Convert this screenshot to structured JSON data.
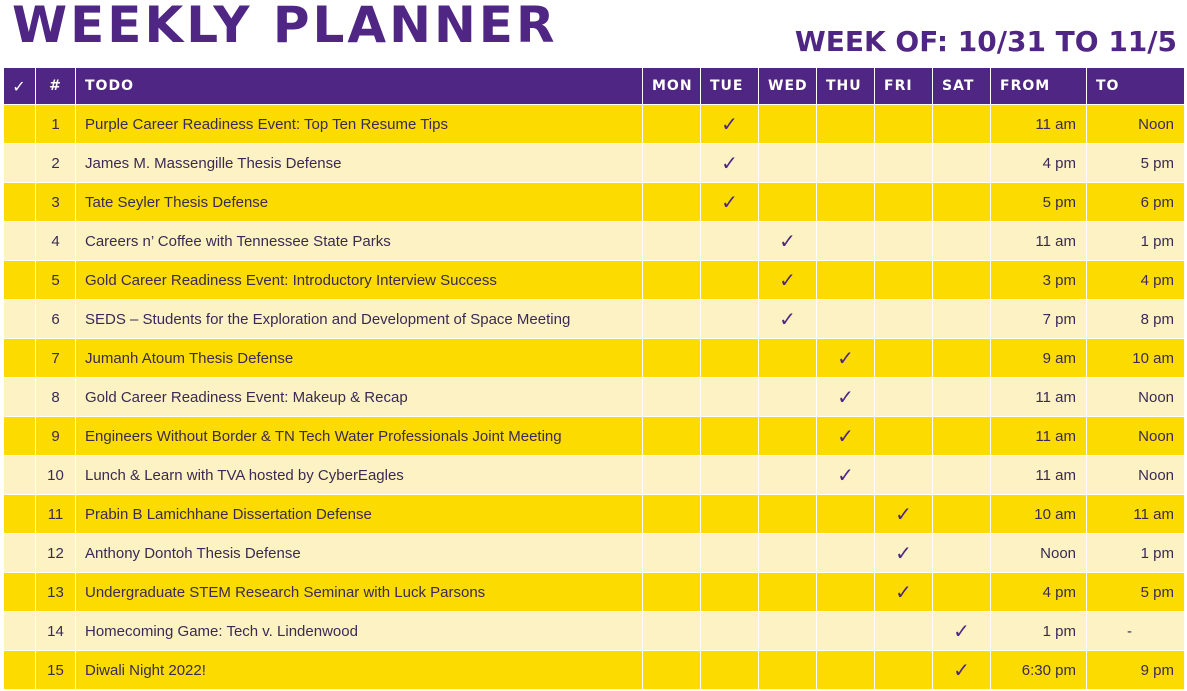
{
  "title": "WEEKLY PLANNER",
  "week": "WEEK OF: 10/31 TO 11/5",
  "check_glyph": "✓",
  "headers": {
    "check": "✓",
    "num": "#",
    "todo": "TODO",
    "mon": "MON",
    "tue": "TUE",
    "wed": "WED",
    "thu": "THU",
    "fri": "FRI",
    "sat": "SAT",
    "from": "FROM",
    "to": "TO"
  },
  "day_keys": [
    "mon",
    "tue",
    "wed",
    "thu",
    "fri",
    "sat"
  ],
  "rows": [
    {
      "num": "1",
      "task": "Purple Career Readiness Event: Top Ten Resume Tips",
      "day": "tue",
      "from": "11 am",
      "to": "Noon"
    },
    {
      "num": "2",
      "task": "James M. Massengille Thesis Defense",
      "day": "tue",
      "from": "4 pm",
      "to": "5 pm"
    },
    {
      "num": "3",
      "task": "Tate Seyler Thesis Defense",
      "day": "tue",
      "from": "5 pm",
      "to": "6 pm"
    },
    {
      "num": "4",
      "task": "Careers n’ Coffee with Tennessee State Parks",
      "day": "wed",
      "from": "11 am",
      "to": "1 pm"
    },
    {
      "num": "5",
      "task": "Gold Career Readiness Event: Introductory Interview Success",
      "day": "wed",
      "from": "3 pm",
      "to": "4 pm"
    },
    {
      "num": "6",
      "task": "SEDS – Students for the Exploration and Development of Space Meeting",
      "day": "wed",
      "from": "7 pm",
      "to": "8 pm"
    },
    {
      "num": "7",
      "task": "Jumanh Atoum Thesis Defense",
      "day": "thu",
      "from": "9 am",
      "to": "10 am"
    },
    {
      "num": "8",
      "task": "Gold Career Readiness Event: Makeup & Recap",
      "day": "thu",
      "from": "11 am",
      "to": "Noon"
    },
    {
      "num": "9",
      "task": "Engineers Without Border & TN Tech Water Professionals Joint Meeting",
      "day": "thu",
      "from": "11 am",
      "to": "Noon"
    },
    {
      "num": "10",
      "task": "Lunch & Learn with TVA hosted by CyberEagles",
      "day": "thu",
      "from": "11 am",
      "to": "Noon"
    },
    {
      "num": "11",
      "task": "Prabin B Lamichhane Dissertation Defense",
      "day": "fri",
      "from": "10 am",
      "to": "11 am"
    },
    {
      "num": "12",
      "task": "Anthony Dontoh Thesis Defense",
      "day": "fri",
      "from": "Noon",
      "to": "1 pm"
    },
    {
      "num": "13",
      "task": "Undergraduate STEM Research Seminar with Luck Parsons",
      "day": "fri",
      "from": "4 pm",
      "to": "5 pm"
    },
    {
      "num": "14",
      "task": "Homecoming Game: Tech v. Lindenwood",
      "day": "sat",
      "from": "1 pm",
      "to": "-"
    },
    {
      "num": "15",
      "task": "Diwali Night 2022!",
      "day": "sat",
      "from": "6:30 pm",
      "to": "9 pm"
    }
  ]
}
